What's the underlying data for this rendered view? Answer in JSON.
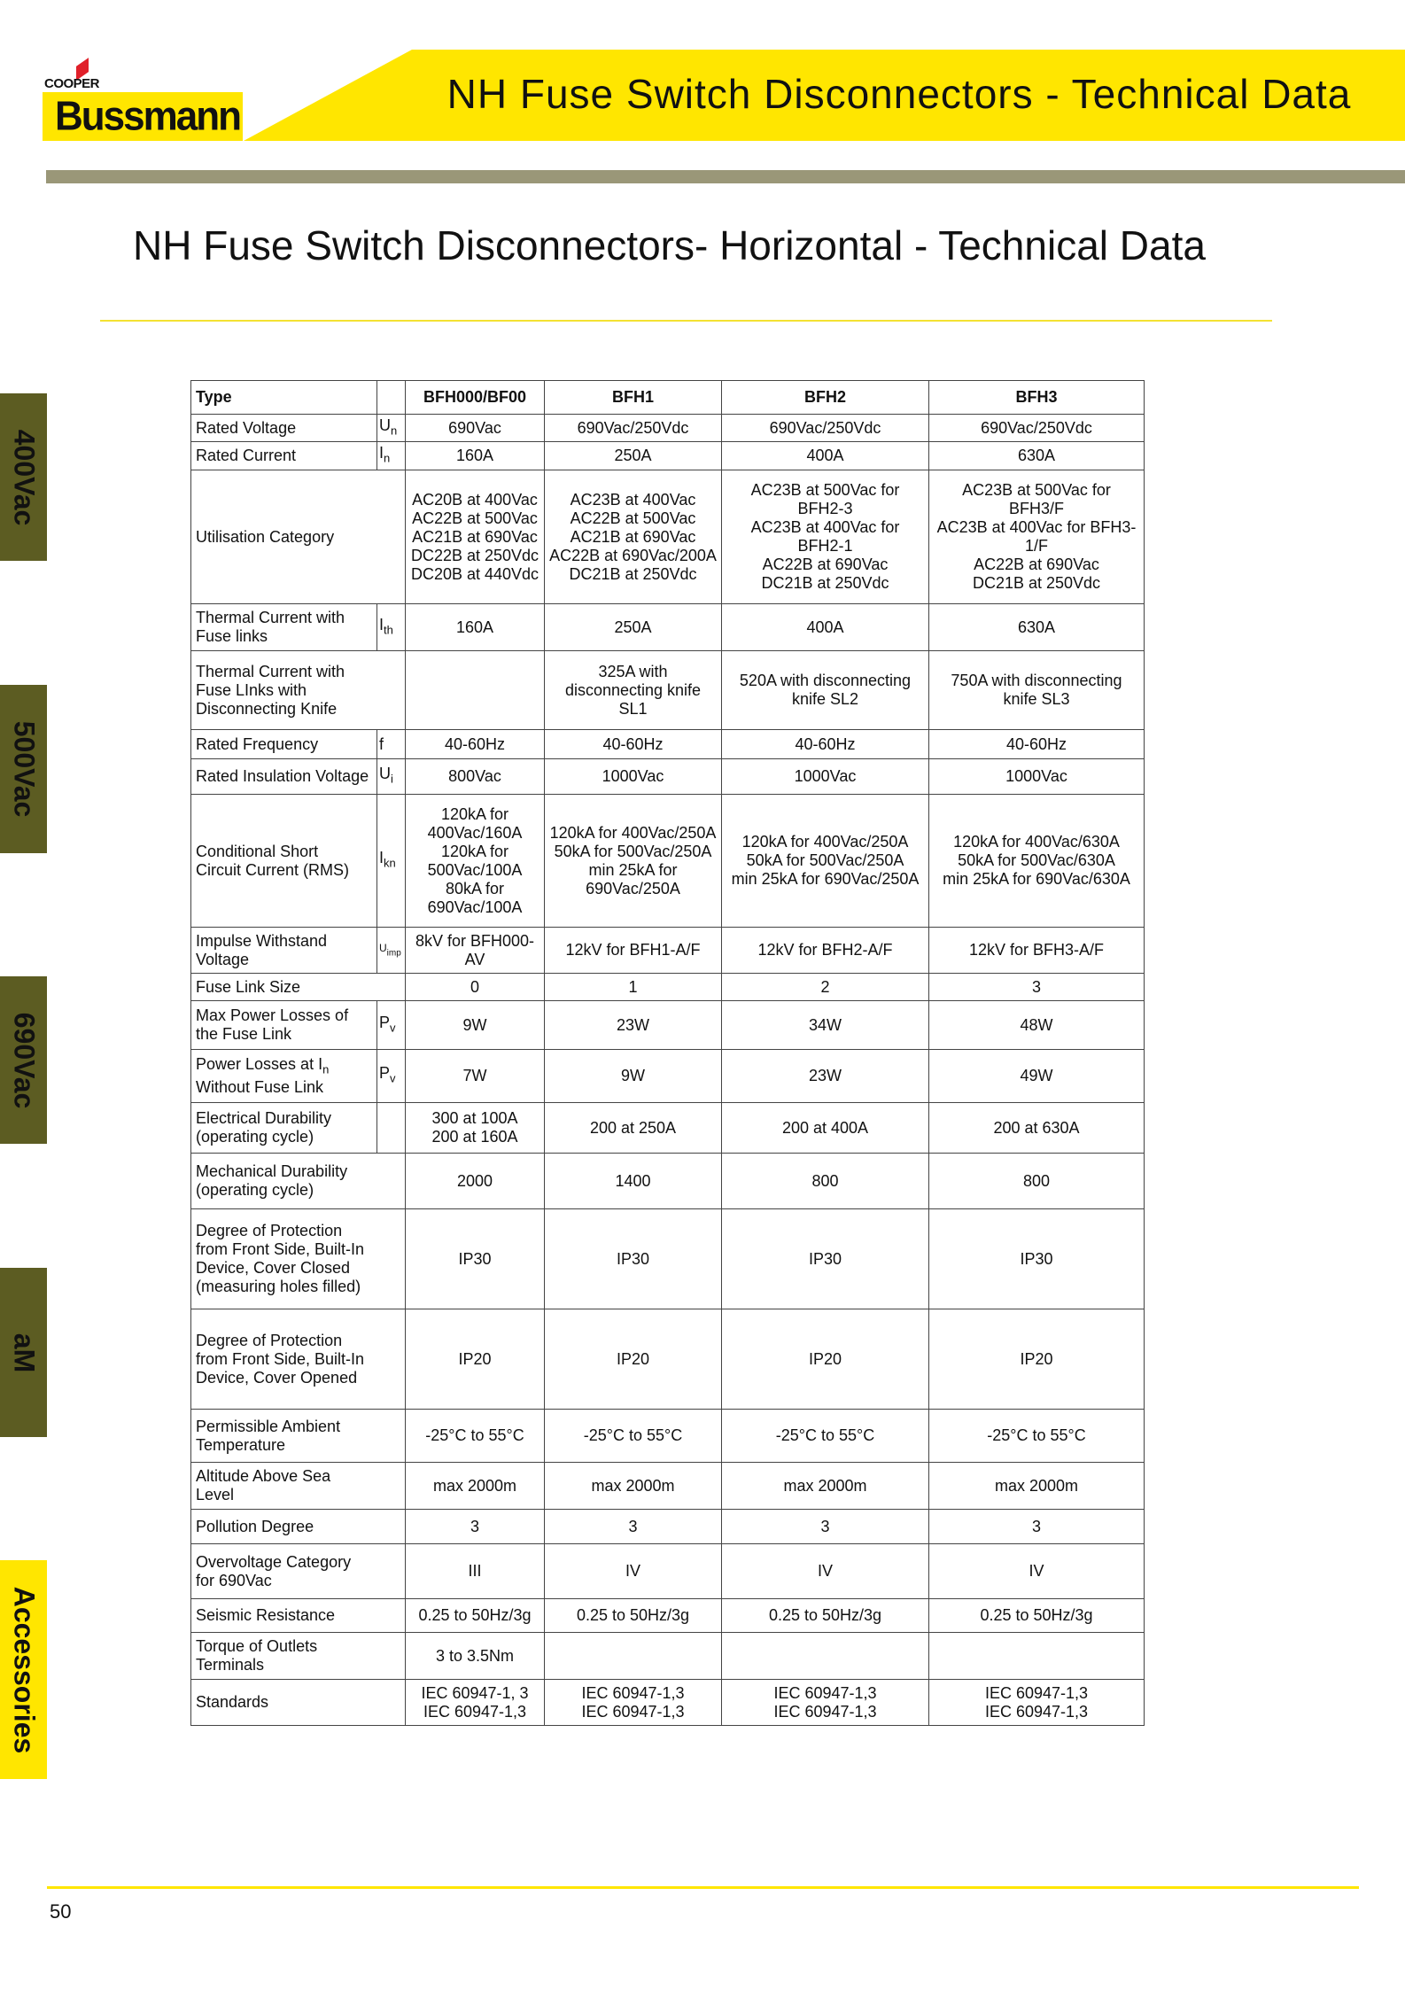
{
  "header": {
    "title": "NH Fuse Switch Disconnectors - Technical Data",
    "logo_top": "COOPER",
    "logo_brand": "Bussmann",
    "colors": {
      "banner": "#ffe600",
      "bar": "#9a9778",
      "tab": "#5c5c22",
      "logo_mark": "#e0202a"
    }
  },
  "page_title": "NH Fuse Switch Disconnectors- Horizontal - Technical Data",
  "side_tabs": [
    "400Vac",
    "500Vac",
    "690Vac",
    "aM",
    "Accessories"
  ],
  "table": {
    "columns": [
      "Type",
      "",
      "BFH000/BF00",
      "BFH1",
      "BFH2",
      "BFH3"
    ],
    "rows": [
      {
        "label": "Rated Voltage",
        "sym": "U",
        "sub": "n",
        "values": [
          "690Vac",
          "690Vac/250Vdc",
          "690Vac/250Vdc",
          "690Vac/250Vdc"
        ]
      },
      {
        "label": "Rated Current",
        "sym": "I",
        "sub": "n",
        "values": [
          "160A",
          "250A",
          "400A",
          "630A"
        ]
      },
      {
        "label": "Utilisation Category",
        "sym": null,
        "values": [
          "AC20B at 400Vac\nAC22B at 500Vac\nAC21B at 690Vac\nDC22B at 250Vdc\nDC20B at 440Vdc",
          "AC23B at 400Vac\nAC22B at 500Vac\nAC21B at 690Vac\nAC22B at 690Vac/200A\nDC21B at 250Vdc",
          "AC23B at 500Vac for BFH2-3\nAC23B at 400Vac for BFH2-1\nAC22B at 690Vac\nDC21B at 250Vdc",
          "AC23B at 500Vac for BFH3/F\nAC23B at 400Vac for BFH3-1/F\nAC22B at 690Vac\nDC21B at 250Vdc"
        ]
      },
      {
        "label": "Thermal Current with\nFuse links",
        "sym": "I",
        "sub": "th",
        "values": [
          "160A",
          "250A",
          "400A",
          "630A"
        ]
      },
      {
        "label": "Thermal Current with\nFuse LInks with\nDisconnecting Knife",
        "sym": null,
        "values": [
          "",
          "325A with\ndisconnecting knife\nSL1",
          "520A with disconnecting\nknife SL2",
          "750A with disconnecting\nknife SL3"
        ]
      },
      {
        "label": "Rated Frequency",
        "sym": "f",
        "sub": "",
        "values": [
          "40-60Hz",
          "40-60Hz",
          "40-60Hz",
          "40-60Hz"
        ]
      },
      {
        "label": "Rated Insulation Voltage",
        "sym": "U",
        "sub": "i",
        "values": [
          "800Vac",
          "1000Vac",
          "1000Vac",
          "1000Vac"
        ]
      },
      {
        "label": "Conditional Short\nCircuit Current (RMS)",
        "sym": "I",
        "sub": "kn",
        "values": [
          "120kA for\n400Vac/160A\n120kA for\n500Vac/100A\n80kA for\n690Vac/100A",
          "120kA for 400Vac/250A\n50kA for 500Vac/250A\nmin 25kA for\n690Vac/250A",
          "120kA for 400Vac/250A\n50kA for 500Vac/250A\nmin 25kA for 690Vac/250A",
          "120kA for 400Vac/630A\n50kA for 500Vac/630A\nmin 25kA for 690Vac/630A"
        ]
      },
      {
        "label": "Impulse Withstand\nVoltage",
        "sym": "U",
        "sub": "imp",
        "values": [
          "8kV for BFH000-AV",
          "12kV for BFH1-A/F",
          "12kV for BFH2-A/F",
          "12kV for BFH3-A/F"
        ]
      },
      {
        "label": "Fuse Link Size",
        "sym": null,
        "values": [
          "0",
          "1",
          "2",
          "3"
        ]
      },
      {
        "label": "Max Power Losses of\nthe Fuse Link",
        "sym": "P",
        "sub": "v",
        "values": [
          "9W",
          "23W",
          "34W",
          "48W"
        ]
      },
      {
        "label": "Power Losses at In\nWithout Fuse Link",
        "sym": "P",
        "sub": "v",
        "values": [
          "7W",
          "9W",
          "23W",
          "49W"
        ]
      },
      {
        "label": "Electrical Durability\n(operating cycle)",
        "sym": "",
        "sub": "",
        "values": [
          "300 at 100A\n200 at 160A",
          "200 at 250A",
          "200 at 400A",
          "200 at 630A"
        ]
      },
      {
        "label": "Mechanical Durability\n(operating cycle)",
        "sym": null,
        "values": [
          "2000",
          "1400",
          "800",
          "800"
        ]
      },
      {
        "label": "Degree of Protection\nfrom Front Side, Built-In\nDevice, Cover Closed\n(measuring holes filled)",
        "sym": null,
        "values": [
          "IP30",
          "IP30",
          "IP30",
          "IP30"
        ]
      },
      {
        "label": "Degree of Protection\nfrom Front Side, Built-In\nDevice, Cover Opened",
        "sym": null,
        "values": [
          "IP20",
          "IP20",
          "IP20",
          "IP20"
        ]
      },
      {
        "label": "Permissible Ambient\nTemperature",
        "sym": null,
        "values": [
          "-25°C to 55°C",
          "-25°C to 55°C",
          "-25°C to 55°C",
          "-25°C to 55°C"
        ]
      },
      {
        "label": "Altitude Above Sea\nLevel",
        "sym": null,
        "values": [
          "max 2000m",
          "max 2000m",
          "max 2000m",
          "max 2000m"
        ]
      },
      {
        "label": "Pollution Degree",
        "sym": null,
        "values": [
          "3",
          "3",
          "3",
          "3"
        ]
      },
      {
        "label": "Overvoltage Category\nfor 690Vac",
        "sym": null,
        "values": [
          "III",
          "IV",
          "IV",
          "IV"
        ]
      },
      {
        "label": "Seismic Resistance",
        "sym": null,
        "values": [
          "0.25 to 50Hz/3g",
          "0.25 to 50Hz/3g",
          "0.25 to 50Hz/3g",
          "0.25 to 50Hz/3g"
        ]
      },
      {
        "label": "Torque of Outlets\nTerminals",
        "sym": null,
        "values": [
          "3 to 3.5Nm",
          "",
          "",
          ""
        ]
      },
      {
        "label": "Standards",
        "sym": null,
        "values": [
          "IEC 60947-1, 3\nIEC 60947-1,3",
          "IEC 60947-1,3\nIEC 60947-1,3",
          "IEC 60947-1,3\nIEC 60947-1,3",
          "IEC 60947-1,3\nIEC 60947-1,3"
        ]
      }
    ]
  },
  "footer": {
    "page_number": "50"
  }
}
